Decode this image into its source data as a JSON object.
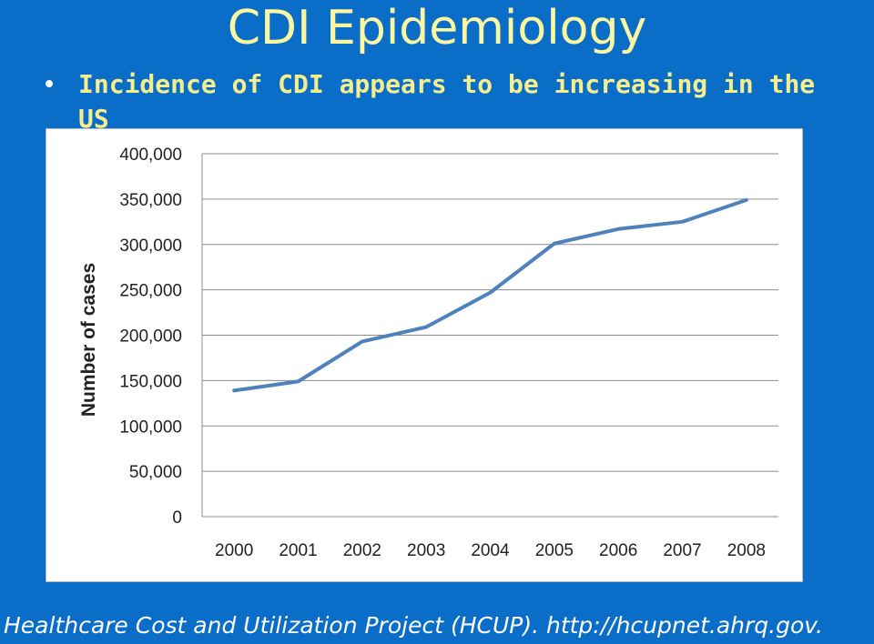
{
  "slide": {
    "title": "CDI Epidemiology",
    "bullet": "Incidence of CDI appears to be increasing in the US",
    "source": "Healthcare Cost and Utilization Project (HCUP). http://hcupnet.ahrq.gov.",
    "background_color": "#0a6ec8",
    "title_color": "#fbf7a0",
    "bullet_color": "#f4ee8c"
  },
  "chart_data": {
    "type": "line",
    "x": [
      "2000",
      "2001",
      "2002",
      "2003",
      "2004",
      "2005",
      "2006",
      "2007",
      "2008"
    ],
    "series": [
      {
        "values": [
          139000,
          149000,
          193000,
          209000,
          247000,
          301000,
          317000,
          325000,
          349000
        ],
        "color": "#4f81bd"
      }
    ],
    "ylabel": "Number of cases",
    "xlabel": "",
    "ylim": [
      0,
      400000
    ],
    "yticks": [
      "0",
      "50,000",
      "100,000",
      "150,000",
      "200,000",
      "250,000",
      "300,000",
      "350,000",
      "400,000"
    ],
    "grid": true,
    "legend": "none"
  }
}
